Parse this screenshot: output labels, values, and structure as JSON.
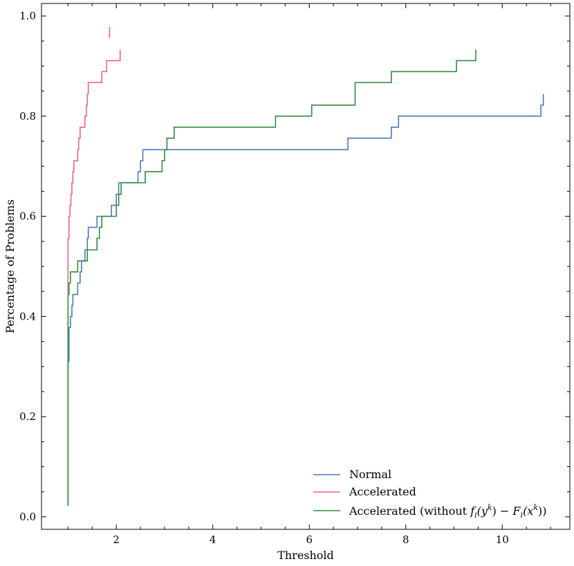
{
  "chart_data": {
    "type": "line",
    "title": "",
    "xlabel": "Threshold",
    "ylabel": "Percentage of Problems",
    "xlim": [
      0.45,
      11.4
    ],
    "ylim": [
      -0.025,
      1.025
    ],
    "xticks": [
      2,
      4,
      6,
      8,
      10
    ],
    "xtick_labels": [
      "2",
      "4",
      "6",
      "8",
      "10"
    ],
    "yticks": [
      0.0,
      0.2,
      0.4,
      0.6,
      0.8,
      1.0
    ],
    "ytick_labels": [
      "0.0",
      "0.2",
      "0.4",
      "0.6",
      "0.8",
      "1.0"
    ],
    "grid": false,
    "legend_position": "lower-right",
    "series": [
      {
        "name": "Normal",
        "color": "#4a7ab5",
        "x": [
          1.0,
          1.0,
          1.02,
          1.05,
          1.08,
          1.1,
          1.15,
          1.2,
          1.25,
          1.28,
          1.3,
          1.35,
          1.4,
          1.42,
          1.45,
          1.5,
          1.6,
          1.7,
          1.8,
          1.9,
          1.95,
          2.0,
          2.05,
          2.1,
          2.2,
          2.3,
          2.45,
          2.5,
          2.55,
          2.6,
          3.0,
          6.5,
          6.8,
          7.3,
          7.7,
          7.85,
          8.5,
          10.0,
          10.8,
          10.85
        ],
        "y": [
          0.022,
          0.311,
          0.378,
          0.4,
          0.422,
          0.444,
          0.444,
          0.467,
          0.489,
          0.511,
          0.511,
          0.533,
          0.556,
          0.578,
          0.578,
          0.578,
          0.6,
          0.6,
          0.6,
          0.622,
          0.622,
          0.644,
          0.667,
          0.667,
          0.667,
          0.667,
          0.689,
          0.711,
          0.733,
          0.733,
          0.733,
          0.733,
          0.756,
          0.756,
          0.778,
          0.8,
          0.8,
          0.8,
          0.822,
          0.844
        ]
      },
      {
        "name": "Accelerated",
        "color": "#e8657e",
        "x": [
          1.0,
          1.0,
          1.02,
          1.04,
          1.06,
          1.08,
          1.1,
          1.12,
          1.15,
          1.2,
          1.22,
          1.25,
          1.3,
          1.35,
          1.38,
          1.4,
          1.42,
          1.45,
          1.6,
          1.7,
          1.75,
          1.8,
          1.85,
          2.0,
          2.05,
          2.08
        ],
        "y": [
          0.444,
          0.556,
          0.6,
          0.622,
          0.644,
          0.667,
          0.689,
          0.711,
          0.711,
          0.733,
          0.756,
          0.778,
          0.778,
          0.8,
          0.822,
          0.844,
          0.867,
          0.867,
          0.867,
          0.889,
          0.889,
          0.911,
          0.911,
          0.911,
          0.911,
          0.933
        ]
      },
      {
        "name": "Accelerated (without f_i(y^k) - F_i(x^k))",
        "color": "#2e8b3d",
        "x": [
          1.0,
          1.0,
          1.02,
          1.05,
          1.2,
          1.3,
          1.4,
          1.45,
          1.6,
          1.65,
          1.7,
          1.75,
          1.8,
          2.0,
          2.05,
          2.1,
          2.2,
          2.3,
          2.6,
          2.7,
          2.95,
          3.0,
          3.05,
          3.2,
          4.0,
          5.3,
          5.5,
          6.05,
          6.5,
          6.95,
          7.5,
          7.7,
          8.0,
          9.0,
          9.05,
          9.45
        ],
        "y": [
          0.022,
          0.444,
          0.467,
          0.489,
          0.511,
          0.511,
          0.533,
          0.533,
          0.556,
          0.578,
          0.6,
          0.6,
          0.6,
          0.622,
          0.644,
          0.667,
          0.667,
          0.667,
          0.689,
          0.689,
          0.711,
          0.733,
          0.756,
          0.778,
          0.778,
          0.8,
          0.8,
          0.822,
          0.822,
          0.867,
          0.867,
          0.889,
          0.889,
          0.889,
          0.911,
          0.933
        ]
      }
    ],
    "legend": {
      "normal": "Normal",
      "accelerated": "Accelerated",
      "without_prefix": "Accelerated (without ",
      "f": "f",
      "i1": "i",
      "y_open": "(y",
      "k1": "k",
      "close1": ")",
      "minus": " − ",
      "F": "F",
      "i2": "i",
      "x_open": "(x",
      "k2": "k",
      "close2": "))"
    }
  },
  "extra_marks": {
    "accelerated_isolated_segment": {
      "x": 1.86,
      "y_from": 0.956,
      "y_to": 0.978
    }
  }
}
